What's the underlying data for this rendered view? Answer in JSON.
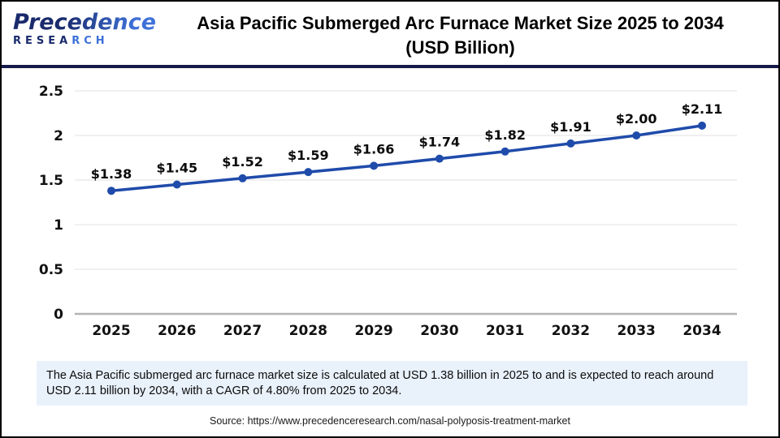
{
  "header": {
    "logo": {
      "line1": "Precedence",
      "line2_dark": "RESEA",
      "line2_light": "RCH"
    },
    "title_line1": "Asia Pacific Submerged Arc Furnace Market Size 2025 to 2034",
    "title_line2": "(USD Billion)"
  },
  "chart_data": {
    "type": "line",
    "title": "Asia Pacific Submerged Arc Furnace Market Size 2025 to 2034 (USD Billion)",
    "categories": [
      "2025",
      "2026",
      "2027",
      "2028",
      "2029",
      "2030",
      "2031",
      "2032",
      "2033",
      "2034"
    ],
    "values": [
      1.38,
      1.45,
      1.52,
      1.59,
      1.66,
      1.74,
      1.82,
      1.91,
      2.0,
      2.11
    ],
    "data_labels": [
      "$1.38",
      "$1.45",
      "$1.52",
      "$1.59",
      "$1.66",
      "$1.74",
      "$1.82",
      "$1.91",
      "$2.00",
      "$2.11"
    ],
    "xlabel": "",
    "ylabel": "",
    "ylim": [
      0,
      2.5
    ],
    "yticks": [
      0,
      0.5,
      1,
      1.5,
      2,
      2.5
    ],
    "ytick_labels": [
      "0",
      "0.5",
      "1",
      "1.5",
      "2",
      "2.5"
    ],
    "grid": true,
    "legend_position": "none",
    "line_color": "#1F4BAA",
    "marker": "circle"
  },
  "summary": {
    "text": "The Asia Pacific submerged arc furnace market size is calculated at USD 1.38 billion in 2025 to and is expected to reach around USD 2.11 billion by 2034, with a CAGR of 4.80% from 2025 to 2034."
  },
  "source": {
    "text": "Source: https://www.precedenceresearch.com/nasal-polyposis-treatment-market"
  },
  "colors": {
    "line": "#1F4BAA",
    "grid": "#E7E7E7",
    "baseline": "#B3B3B3",
    "header_rule": "#151A4A",
    "logo_dark": "#1A2B6D",
    "logo_light": "#3E71D8",
    "summary_bg": "#E9F1FB"
  }
}
